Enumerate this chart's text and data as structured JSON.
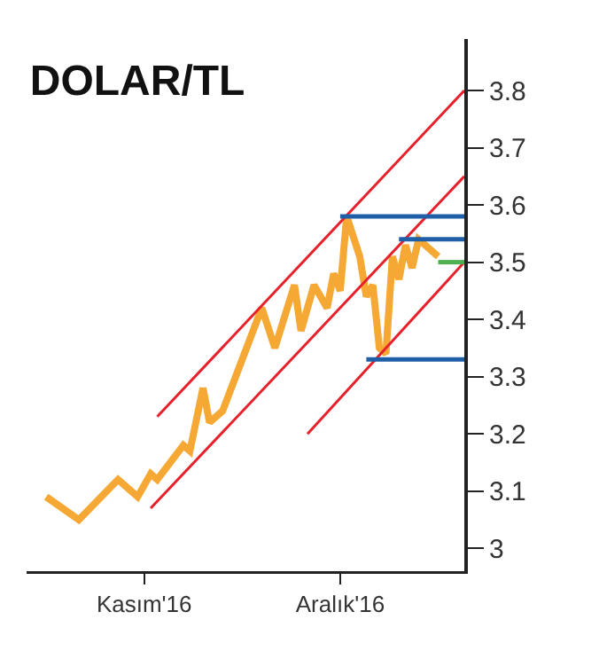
{
  "chart_data": {
    "type": "line",
    "title": "DOLAR/TL",
    "xlim": [
      "2016-10-14",
      "2016-12-20"
    ],
    "xticks": [
      {
        "value": "2016-11-01",
        "label": "Kasım'16"
      },
      {
        "value": "2016-12-01",
        "label": "Aralık'16"
      }
    ],
    "ylim": [
      2.96,
      3.89
    ],
    "yticks": [
      3,
      3.1,
      3.2,
      3.3,
      3.4,
      3.5,
      3.6,
      3.7,
      3.8
    ],
    "grid": false,
    "marker": "none",
    "line_style": "solid",
    "series": [
      {
        "color": "#f5a833",
        "x": [
          "2016-10-17",
          "2016-10-22",
          "2016-10-28",
          "2016-10-31",
          "2016-11-02",
          "2016-11-03",
          "2016-11-07",
          "2016-11-08",
          "2016-11-10",
          "2016-11-11",
          "2016-11-13",
          "2016-11-19",
          "2016-11-21",
          "2016-11-24",
          "2016-11-25",
          "2016-11-27",
          "2016-11-29",
          "2016-11-30",
          "2016-12-01",
          "2016-12-02",
          "2016-12-04",
          "2016-12-05",
          "2016-12-06",
          "2016-12-07",
          "2016-12-08",
          "2016-12-09",
          "2016-12-10",
          "2016-12-11",
          "2016-12-12",
          "2016-12-13",
          "2016-12-15",
          "2016-12-16"
        ],
        "values": [
          3.09,
          3.05,
          3.12,
          3.09,
          3.13,
          3.12,
          3.18,
          3.17,
          3.28,
          3.22,
          3.24,
          3.42,
          3.35,
          3.46,
          3.38,
          3.46,
          3.42,
          3.48,
          3.45,
          3.58,
          3.51,
          3.44,
          3.46,
          3.35,
          3.34,
          3.51,
          3.47,
          3.53,
          3.49,
          3.54,
          3.52,
          3.51
        ]
      },
      {
        "color": "#e8202a",
        "x": [
          "2016-11-03",
          "2016-12-20"
        ],
        "values": [
          3.23,
          3.8
        ]
      },
      {
        "color": "#e8202a",
        "x": [
          "2016-11-02",
          "2016-12-20"
        ],
        "values": [
          3.07,
          3.65
        ]
      },
      {
        "color": "#e8202a",
        "x": [
          "2016-11-26",
          "2016-12-20"
        ],
        "values": [
          3.2,
          3.5
        ]
      },
      {
        "color": "#1f5fa8",
        "x": [
          "2016-12-01",
          "2016-12-20"
        ],
        "values": [
          3.58,
          3.58
        ]
      },
      {
        "color": "#1f5fa8",
        "x": [
          "2016-12-10",
          "2016-12-20"
        ],
        "values": [
          3.54,
          3.54
        ]
      },
      {
        "color": "#1f5fa8",
        "x": [
          "2016-12-05",
          "2016-12-20"
        ],
        "values": [
          3.33,
          3.33
        ]
      },
      {
        "color": "#4caf50",
        "x": [
          "2016-12-16",
          "2016-12-20"
        ],
        "values": [
          3.5,
          3.5
        ]
      }
    ]
  }
}
